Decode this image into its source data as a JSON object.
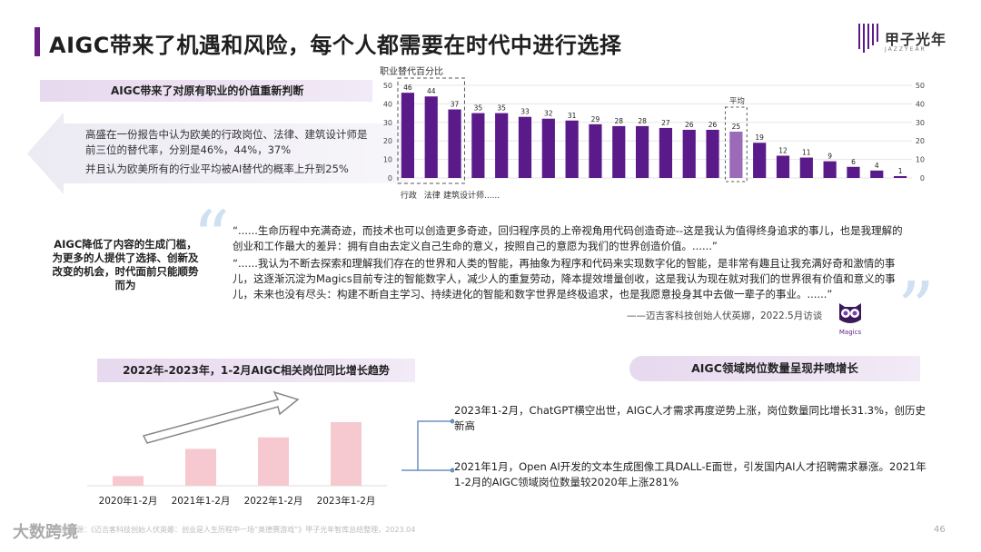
{
  "title": "AIGC带来了机遇和风险，每个人都需要在时代中进行选择",
  "logo": {
    "name": "甲子光年",
    "sub": "JAZZYEAR"
  },
  "section1": {
    "banner": "AIGC带来了对原有职业的价值重新判断",
    "para1": "高盛在一份报告中认为欧美的行政岗位、法律、建筑设计师是前三位的替代率，分别是46%，44%，37%",
    "para2": "并且认为欧美所有的行业平均被AI替代的概率上升到25%"
  },
  "chart_data": {
    "type": "bar",
    "title": "",
    "ylabel": "职业替代百分比",
    "xlabel": "",
    "ylim": [
      0,
      50
    ],
    "yticks": [
      0,
      10,
      20,
      30,
      40,
      50
    ],
    "values": [
      46,
      44,
      37,
      35,
      35,
      33,
      32,
      31,
      29,
      28,
      28,
      27,
      26,
      26,
      25,
      19,
      12,
      11,
      9,
      6,
      4,
      1
    ],
    "highlight_labels": [
      "行政",
      "法律",
      "建筑设计师......"
    ],
    "average_label": "平均",
    "average_index": 14,
    "bar_color": "#5b1a8a",
    "avg_color": "#9b6bb8",
    "grid": true
  },
  "left_text": "AIGC降低了内容的生成门槛，为更多的人提供了选择、创新及改变的机会，时代面前只能顺势而为",
  "quote1": "“......生命历程中充满奇迹，而技术也可以创造更多奇迹，回归程序员的上帝视角用代码创造奇迹--这是我认为值得终身追求的事儿，也是我理解的创业和工作最大的差异：拥有自由去定义自己生命的意义，按照自己的意愿为我们的世界创造价值。......”",
  "quote2": "“......我认为不断去探索和理解我们存在的世界和人类的智能，再抽象为程序和代码来实现数字化的智能，是非常有趣且让我充满好奇和激情的事儿，这逐渐沉淀为Magics目前专注的智能数字人，减少人的重复劳动，降本提效增量创收，这是我认为现在就对我们的世界很有价值和意义的事儿，未来也没有尽头：构建不断自主学习、持续进化的智能和数字世界是终极追求，也是我愿意投身其中去做一辈子的事业。......”",
  "attribution": "——迈吉客科技创始人伏英娜，2022.5月访谈",
  "owl_label": "Magics",
  "banner2": "2022年-2023年，1-2月AIGC相关岗位同比增长趋势",
  "banner3": "AIGC领域岗位数量呈现井喷增长",
  "trend_chart": {
    "type": "bar",
    "categories": [
      "2020年1-2月",
      "2021年1-2月",
      "2022年1-2月",
      "2023年1-2月"
    ],
    "values": [
      1,
      3.81,
      5.0,
      6.57
    ],
    "bar_color": "#f6c9d0"
  },
  "timeline": {
    "item1": "2023年1-2月，ChatGPT横空出世，AIGC人才需求再度逆势上涨，岗位数量同比增长31.3%，创历史新高",
    "item2": "2021年1月，Open AI开发的文本生成图像工具DALL-E面世，引发国内AI人才招聘需求暴涨。2021年1-2月的AIGC领域岗位数量较2020年上涨281%"
  },
  "footer": "数据来源：《迈吉客科技创始人伏英娜：创业是人生历程中一场“奥德赛游戏”》甲子光年智库总结整理，2023.04",
  "footer_logo": "大数跨境",
  "page_num": "46"
}
